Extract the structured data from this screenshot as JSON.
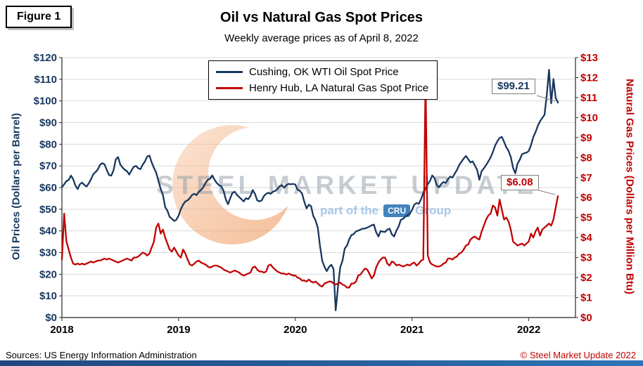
{
  "figure_label": "Figure 1",
  "watermark": {
    "text": "STEEL MARKET UPDATE",
    "tagline_prefix": "part of the",
    "tagline_badge": "CRU",
    "tagline_suffix": "Group"
  },
  "footer": {
    "sources": "Sources: US Energy Information Administration",
    "copyright": "© Steel Market Update 2022"
  },
  "chart_data": {
    "type": "line",
    "title": "Oil vs Natural Gas Spot Prices",
    "subtitle": "Weekly average prices as of April 8, 2022",
    "grid": "horizontal",
    "legend_position": "top-center",
    "x_min": 2018,
    "x_max": 2022.4,
    "x_start": 2018,
    "x_step_years": 0.01923077,
    "x_ticks": [
      "2018",
      "2019",
      "2020",
      "2021",
      "2022"
    ],
    "left_axis": {
      "label": "Oil Prices (Dollars per Barrel)",
      "color": "#17375E",
      "min": 0,
      "max": 120,
      "tick_step": 10,
      "ticks": [
        "$0",
        "$10",
        "$20",
        "$30",
        "$40",
        "$50",
        "$60",
        "$70",
        "$80",
        "$90",
        "$100",
        "$110",
        "$120"
      ]
    },
    "right_axis": {
      "label": "Natural Gas Prices (Dollars per Million Btu)",
      "color": "#C00000",
      "min": 0,
      "max": 13,
      "tick_step": 1,
      "ticks": [
        "$0",
        "$1",
        "$2",
        "$3",
        "$4",
        "$5",
        "$6",
        "$7",
        "$8",
        "$9",
        "$10",
        "$11",
        "$12",
        "$13"
      ]
    },
    "series": [
      {
        "name": "Cushing, OK WTI Oil Spot Price",
        "axis": "left",
        "color": "#17375E",
        "values": [
          60.2,
          61.5,
          63,
          63.5,
          65.5,
          63.9,
          61,
          59.3,
          61.5,
          62.3,
          61.2,
          60.5,
          62,
          64,
          66.2,
          67.2,
          68.3,
          70.5,
          71.3,
          70.7,
          68.1,
          65.8,
          65.5,
          68,
          73,
          74.1,
          70.6,
          69.3,
          68.2,
          67.6,
          66,
          67.9,
          69.6,
          70,
          68.9,
          68.5,
          70.6,
          72.1,
          74.3,
          74.8,
          71.6,
          69.1,
          66.9,
          63.1,
          59.4,
          56.6,
          51,
          49.3,
          46.5,
          45.6,
          44.6,
          45.1,
          47.1,
          50,
          52.2,
          53.6,
          54.1,
          55.2,
          56.6,
          57.1,
          56.5,
          58.1,
          58.9,
          60.1,
          62.1,
          63.6,
          64.1,
          65.6,
          63.6,
          62.1,
          61.1,
          60.6,
          58.6,
          54.6,
          52.3,
          55.1,
          57.6,
          58.1,
          56.6,
          55.6,
          54.6,
          53.6,
          55.1,
          54.6,
          56.1,
          58.9,
          57.1,
          54.1,
          53.6,
          54.1,
          56.1,
          57.1,
          57.6,
          57.1,
          58.1,
          58.4,
          59.3,
          60.6,
          61.1,
          59.9,
          61.1,
          61.7,
          61.5,
          61.7,
          61.4,
          59,
          58.5,
          57.2,
          53.4,
          50.4,
          52.1,
          51.4,
          46.9,
          44.9,
          41.5,
          33,
          26.1,
          23.4,
          21.4,
          23.4,
          24.4,
          22.4,
          3.3,
          14.1,
          23.2,
          26.2,
          31.8,
          33.2,
          36.1,
          38.1,
          38.5,
          39.8,
          40.1,
          40.6,
          41,
          41.1,
          41.5,
          42,
          42.6,
          42.9,
          39.4,
          37.4,
          40,
          39.6,
          39.5,
          40.6,
          41,
          38.4,
          37.4,
          40.1,
          42,
          45.1,
          45.6,
          46.6,
          47.3,
          47.9,
          49.7,
          52.1,
          52.9,
          52.5,
          54.6,
          57.6,
          59.6,
          61.6,
          63.1,
          65.6,
          64.4,
          61.1,
          60.1,
          61.6,
          62.6,
          62.1,
          63.9,
          65.1,
          64.6,
          66.4,
          68.1,
          70.4,
          71.9,
          73.4,
          74.6,
          73.1,
          71.6,
          72.1,
          70.1,
          68.1,
          63.6,
          67.6,
          68.9,
          70.4,
          72.1,
          73.9,
          76.4,
          79.4,
          81.4,
          82.9,
          83.4,
          81.1,
          78.6,
          76.9,
          74.1,
          69.1,
          66.6,
          71.1,
          72.9,
          75.4,
          75.9,
          76.1,
          76.9,
          79.6,
          83.3,
          85.6,
          88.4,
          90.6,
          92.1,
          93.6,
          102.6,
          114.4,
          98.9,
          110.1,
          101.3,
          99.21
        ]
      },
      {
        "name": "Henry Hub, LA Natural Gas Spot Price",
        "axis": "right",
        "color": "#C00000",
        "values": [
          2.9,
          5.2,
          3.8,
          3.4,
          3,
          2.7,
          2.65,
          2.7,
          2.65,
          2.7,
          2.65,
          2.7,
          2.75,
          2.8,
          2.75,
          2.8,
          2.85,
          2.85,
          2.9,
          2.95,
          2.9,
          2.95,
          2.9,
          2.85,
          2.8,
          2.75,
          2.8,
          2.85,
          2.9,
          2.95,
          2.9,
          2.85,
          3,
          3,
          3.05,
          3.15,
          3.25,
          3.2,
          3.1,
          3.2,
          3.5,
          3.8,
          4.5,
          4.7,
          4.2,
          4.4,
          4,
          3.7,
          3.4,
          3.3,
          3.5,
          3.3,
          3.1,
          3,
          3.4,
          3.2,
          2.9,
          2.65,
          2.6,
          2.7,
          2.8,
          2.85,
          2.75,
          2.7,
          2.65,
          2.55,
          2.5,
          2.55,
          2.6,
          2.6,
          2.55,
          2.5,
          2.4,
          2.35,
          2.3,
          2.25,
          2.3,
          2.35,
          2.3,
          2.25,
          2.15,
          2.1,
          2.15,
          2.2,
          2.25,
          2.5,
          2.55,
          2.4,
          2.3,
          2.3,
          2.25,
          2.3,
          2.6,
          2.65,
          2.5,
          2.4,
          2.3,
          2.25,
          2.2,
          2.2,
          2.15,
          2.2,
          2.15,
          2.1,
          2.1,
          2,
          1.95,
          1.85,
          1.85,
          1.8,
          1.9,
          1.8,
          1.75,
          1.8,
          1.7,
          1.6,
          1.55,
          1.7,
          1.75,
          1.8,
          1.8,
          1.7,
          1.65,
          1.7,
          1.75,
          1.65,
          1.6,
          1.5,
          1.5,
          1.7,
          1.7,
          1.8,
          2.1,
          2.15,
          2.3,
          2.45,
          2.4,
          2.2,
          1.95,
          2.1,
          2.5,
          2.75,
          2.9,
          3,
          3,
          2.7,
          2.6,
          2.8,
          2.75,
          2.6,
          2.65,
          2.6,
          2.55,
          2.6,
          2.65,
          2.6,
          2.7,
          2.75,
          2.6,
          2.7,
          2.85,
          2.9,
          12,
          3.1,
          2.75,
          2.65,
          2.6,
          2.55,
          2.55,
          2.6,
          2.7,
          2.75,
          2.95,
          2.95,
          2.9,
          3,
          3.05,
          3.2,
          3.25,
          3.4,
          3.6,
          3.65,
          3.9,
          4,
          4.05,
          3.95,
          3.9,
          4.3,
          4.6,
          4.9,
          5.1,
          5.2,
          5.6,
          5.5,
          5.1,
          5.9,
          5.4,
          4.9,
          5,
          4.8,
          4.4,
          3.8,
          3.7,
          3.6,
          3.65,
          3.7,
          3.6,
          3.7,
          3.8,
          4.2,
          4,
          4.3,
          4.5,
          4.1,
          4.4,
          4.5,
          4.6,
          4.7,
          4.6,
          4.9,
          5.5,
          6.08
        ]
      }
    ],
    "annotations": [
      {
        "text": "$99.21",
        "series": "oil",
        "color": "#17375E"
      },
      {
        "text": "$6.08",
        "series": "gas",
        "color": "#C00000"
      }
    ]
  }
}
